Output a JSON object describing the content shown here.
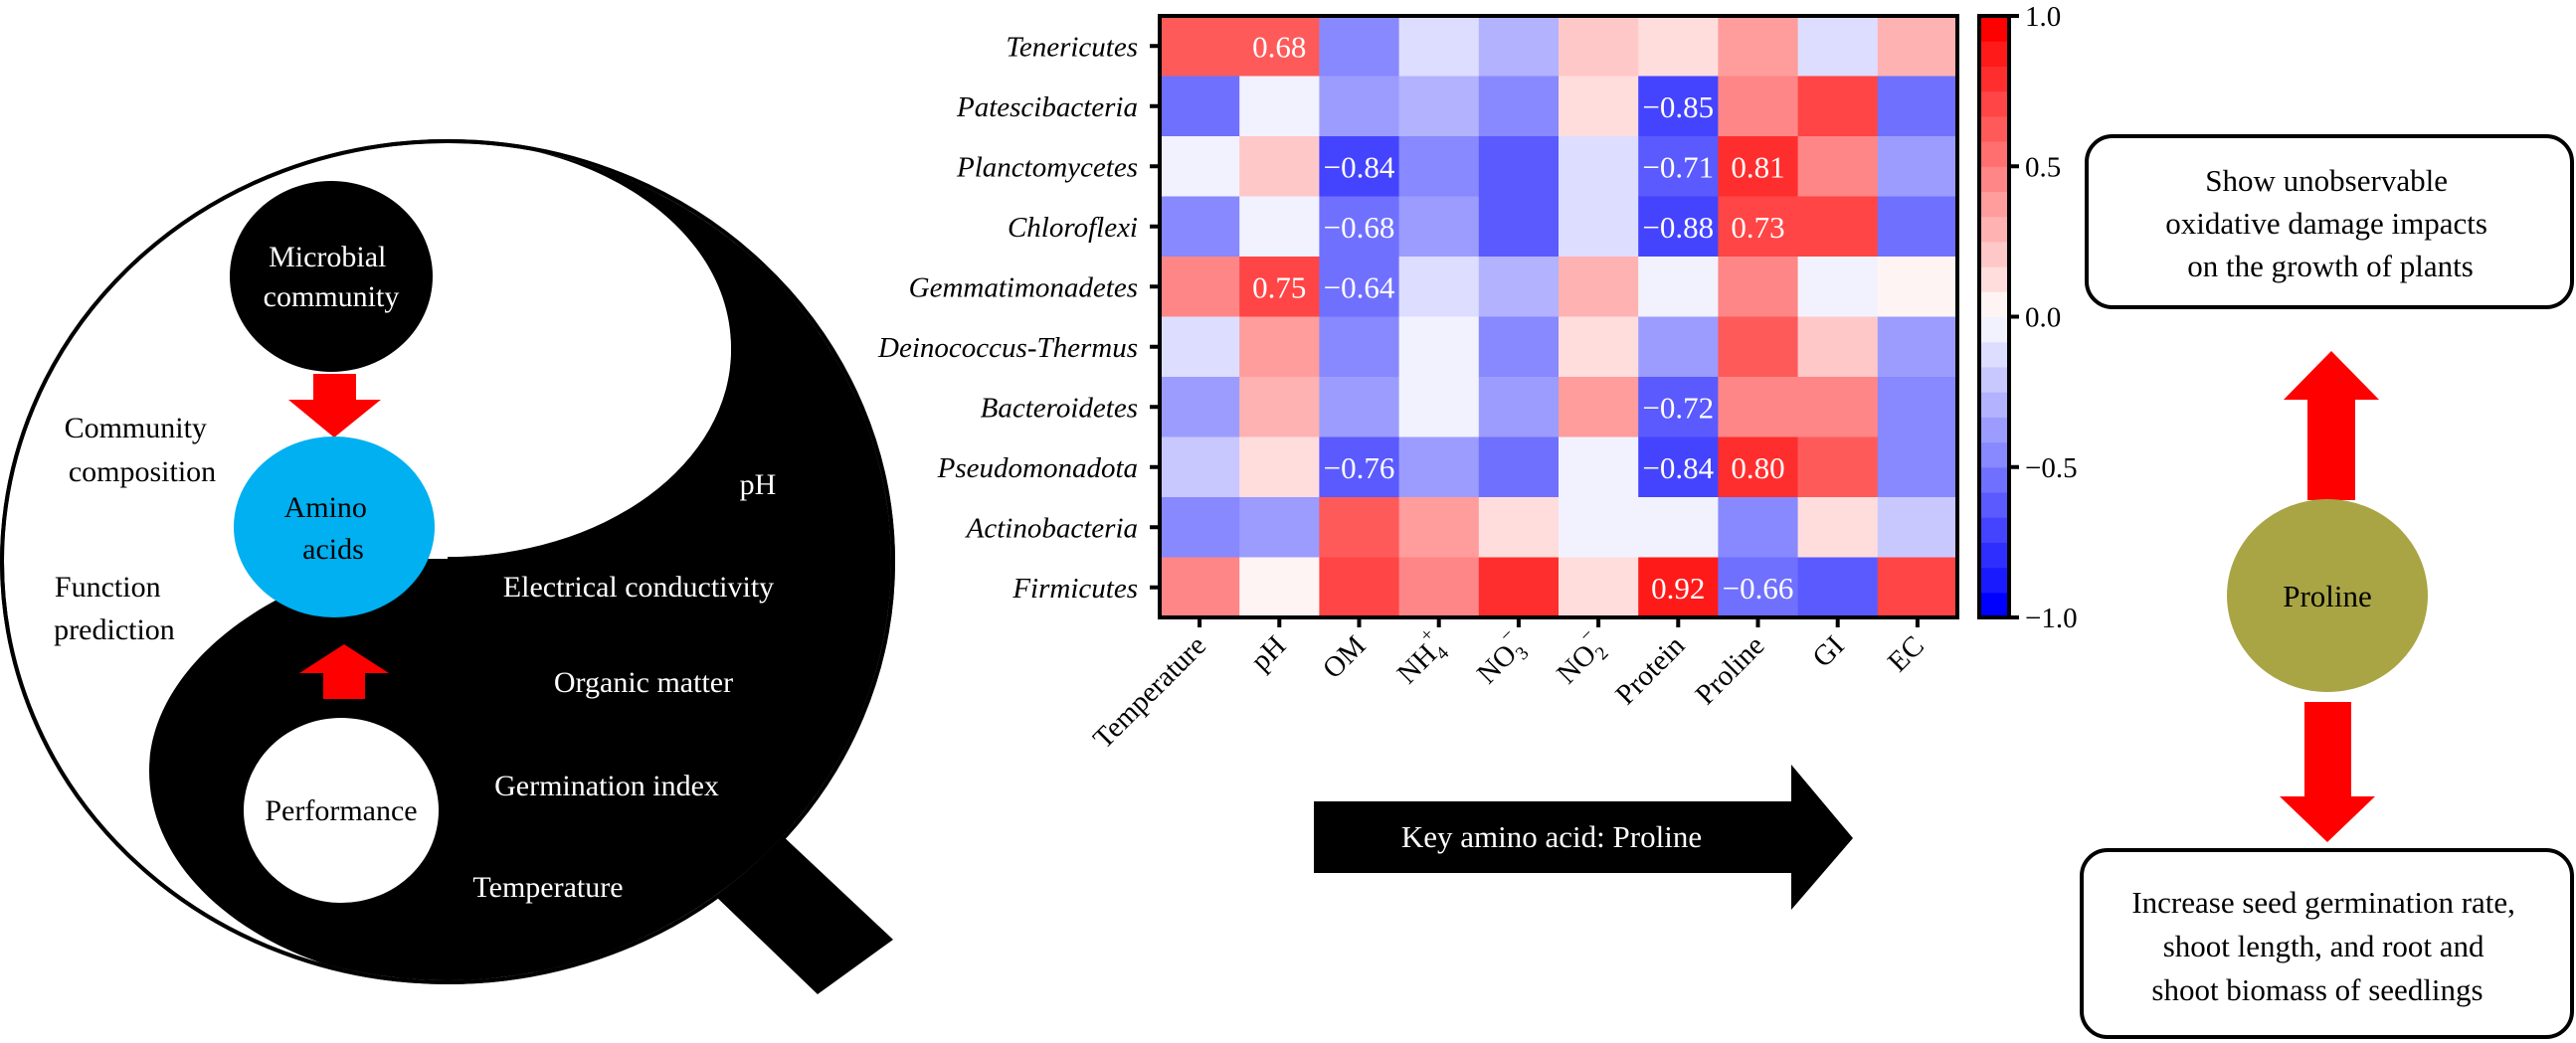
{
  "left_diagram": {
    "microbial_community": [
      "Microbial",
      "community"
    ],
    "amino_acids": [
      "Amino",
      "acids"
    ],
    "performance": "Performance",
    "community_composition": [
      "Community",
      "composition"
    ],
    "function_prediction": [
      "Function",
      "prediction"
    ],
    "factors": [
      "pH",
      "Electrical conductivity",
      "Organic matter",
      "Germination index",
      "Temperature"
    ],
    "colors": {
      "amino_acids": "#00B0F0",
      "arrow": "#FF0000",
      "dark": "#000000"
    }
  },
  "key_arrow": {
    "label": "Key amino acid: Proline"
  },
  "right_diagram": {
    "proline": "Proline",
    "proline_color": "#A9A545",
    "top_box": [
      "Show unobservable",
      "oxidative damage impacts",
      "on the growth of plants"
    ],
    "bottom_box": [
      "Increase seed germination rate,",
      "shoot length, and root and",
      "shoot biomass of seedlings"
    ],
    "arrow_color": "#FF0000"
  },
  "chart_data": {
    "type": "heatmap",
    "title": "",
    "rows": [
      "Tenericutes",
      "Patescibacteria",
      "Planctomycetes",
      "Chloroflexi",
      "Gemmatimonadetes",
      "Deinococcus-Thermus",
      "Bacteroidetes",
      "Pseudomonadota",
      "Actinobacteria",
      "Firmicutes"
    ],
    "columns": [
      {
        "base": "Temperature"
      },
      {
        "base": "pH"
      },
      {
        "base": "OM"
      },
      {
        "base": "NH",
        "sub": "4",
        "sup": "+"
      },
      {
        "base": "NO",
        "sub": "3",
        "sup": "−"
      },
      {
        "base": "NO",
        "sub": "2",
        "sup": "−"
      },
      {
        "base": "Protein"
      },
      {
        "base": "Proline"
      },
      {
        "base": "GI"
      },
      {
        "base": "EC"
      }
    ],
    "values": [
      [
        0.65,
        0.68,
        -0.55,
        -0.15,
        -0.35,
        0.25,
        0.15,
        0.45,
        -0.15,
        0.35
      ],
      [
        -0.65,
        -0.05,
        -0.45,
        -0.35,
        -0.55,
        0.15,
        -0.85,
        0.55,
        0.75,
        -0.65
      ],
      [
        -0.05,
        0.25,
        -0.84,
        -0.55,
        -0.75,
        -0.15,
        -0.71,
        0.81,
        0.55,
        -0.4
      ],
      [
        -0.55,
        -0.05,
        -0.68,
        -0.45,
        -0.75,
        -0.15,
        -0.88,
        0.73,
        0.75,
        -0.65
      ],
      [
        0.55,
        0.75,
        -0.64,
        -0.15,
        -0.35,
        0.35,
        -0.05,
        0.55,
        -0.05,
        0.05
      ],
      [
        -0.15,
        0.45,
        -0.55,
        -0.05,
        -0.55,
        0.15,
        -0.45,
        0.65,
        0.25,
        -0.4
      ],
      [
        -0.45,
        0.35,
        -0.45,
        -0.05,
        -0.45,
        0.45,
        -0.72,
        0.55,
        0.55,
        -0.55
      ],
      [
        -0.25,
        0.15,
        -0.76,
        -0.45,
        -0.65,
        -0.05,
        -0.84,
        0.8,
        0.65,
        -0.55
      ],
      [
        -0.55,
        -0.45,
        0.65,
        0.45,
        0.15,
        -0.05,
        -0.05,
        -0.55,
        0.15,
        -0.25
      ],
      [
        0.55,
        0.05,
        0.75,
        0.55,
        0.85,
        0.15,
        0.92,
        -0.66,
        -0.75,
        0.75
      ]
    ],
    "annotations": [
      {
        "row": 0,
        "col": 1,
        "text": "0.68"
      },
      {
        "row": 1,
        "col": 6,
        "text": "−0.85"
      },
      {
        "row": 2,
        "col": 2,
        "text": "−0.84"
      },
      {
        "row": 2,
        "col": 6,
        "text": "−0.71"
      },
      {
        "row": 2,
        "col": 7,
        "text": "0.81"
      },
      {
        "row": 3,
        "col": 2,
        "text": "−0.68"
      },
      {
        "row": 3,
        "col": 6,
        "text": "−0.88"
      },
      {
        "row": 3,
        "col": 7,
        "text": "0.73"
      },
      {
        "row": 4,
        "col": 1,
        "text": "0.75"
      },
      {
        "row": 4,
        "col": 2,
        "text": "−0.64"
      },
      {
        "row": 6,
        "col": 6,
        "text": "−0.72"
      },
      {
        "row": 7,
        "col": 2,
        "text": "−0.76"
      },
      {
        "row": 7,
        "col": 6,
        "text": "−0.84"
      },
      {
        "row": 7,
        "col": 7,
        "text": "0.80"
      },
      {
        "row": 9,
        "col": 6,
        "text": "0.92"
      },
      {
        "row": 9,
        "col": 7,
        "text": "−0.66"
      }
    ],
    "colorbar": {
      "range": [
        -1.0,
        1.0
      ],
      "ticks": [
        1.0,
        0.5,
        0.0,
        -0.5,
        -1.0
      ],
      "tick_labels": [
        "1.0",
        "0.5",
        "0.0",
        "−0.5",
        "−1.0"
      ],
      "steps": 20,
      "colors_low_to_high": [
        "#0000FF",
        "#1A1AFF",
        "#2E2EFF",
        "#4444FF",
        "#5A5AFF",
        "#7070FF",
        "#8888FF",
        "#9C9CFF",
        "#B2B2FF",
        "#C8C8FF",
        "#DDDDFF",
        "#F2F2FF",
        "#FFF4F4",
        "#FFDDDD",
        "#FFC8C8",
        "#FFB2B2",
        "#FF9C9C",
        "#FF8686",
        "#FF6F6F",
        "#FF5A5A",
        "#FF4545",
        "#FF2E2E",
        "#FF1A1A",
        "#FF0000"
      ]
    }
  }
}
